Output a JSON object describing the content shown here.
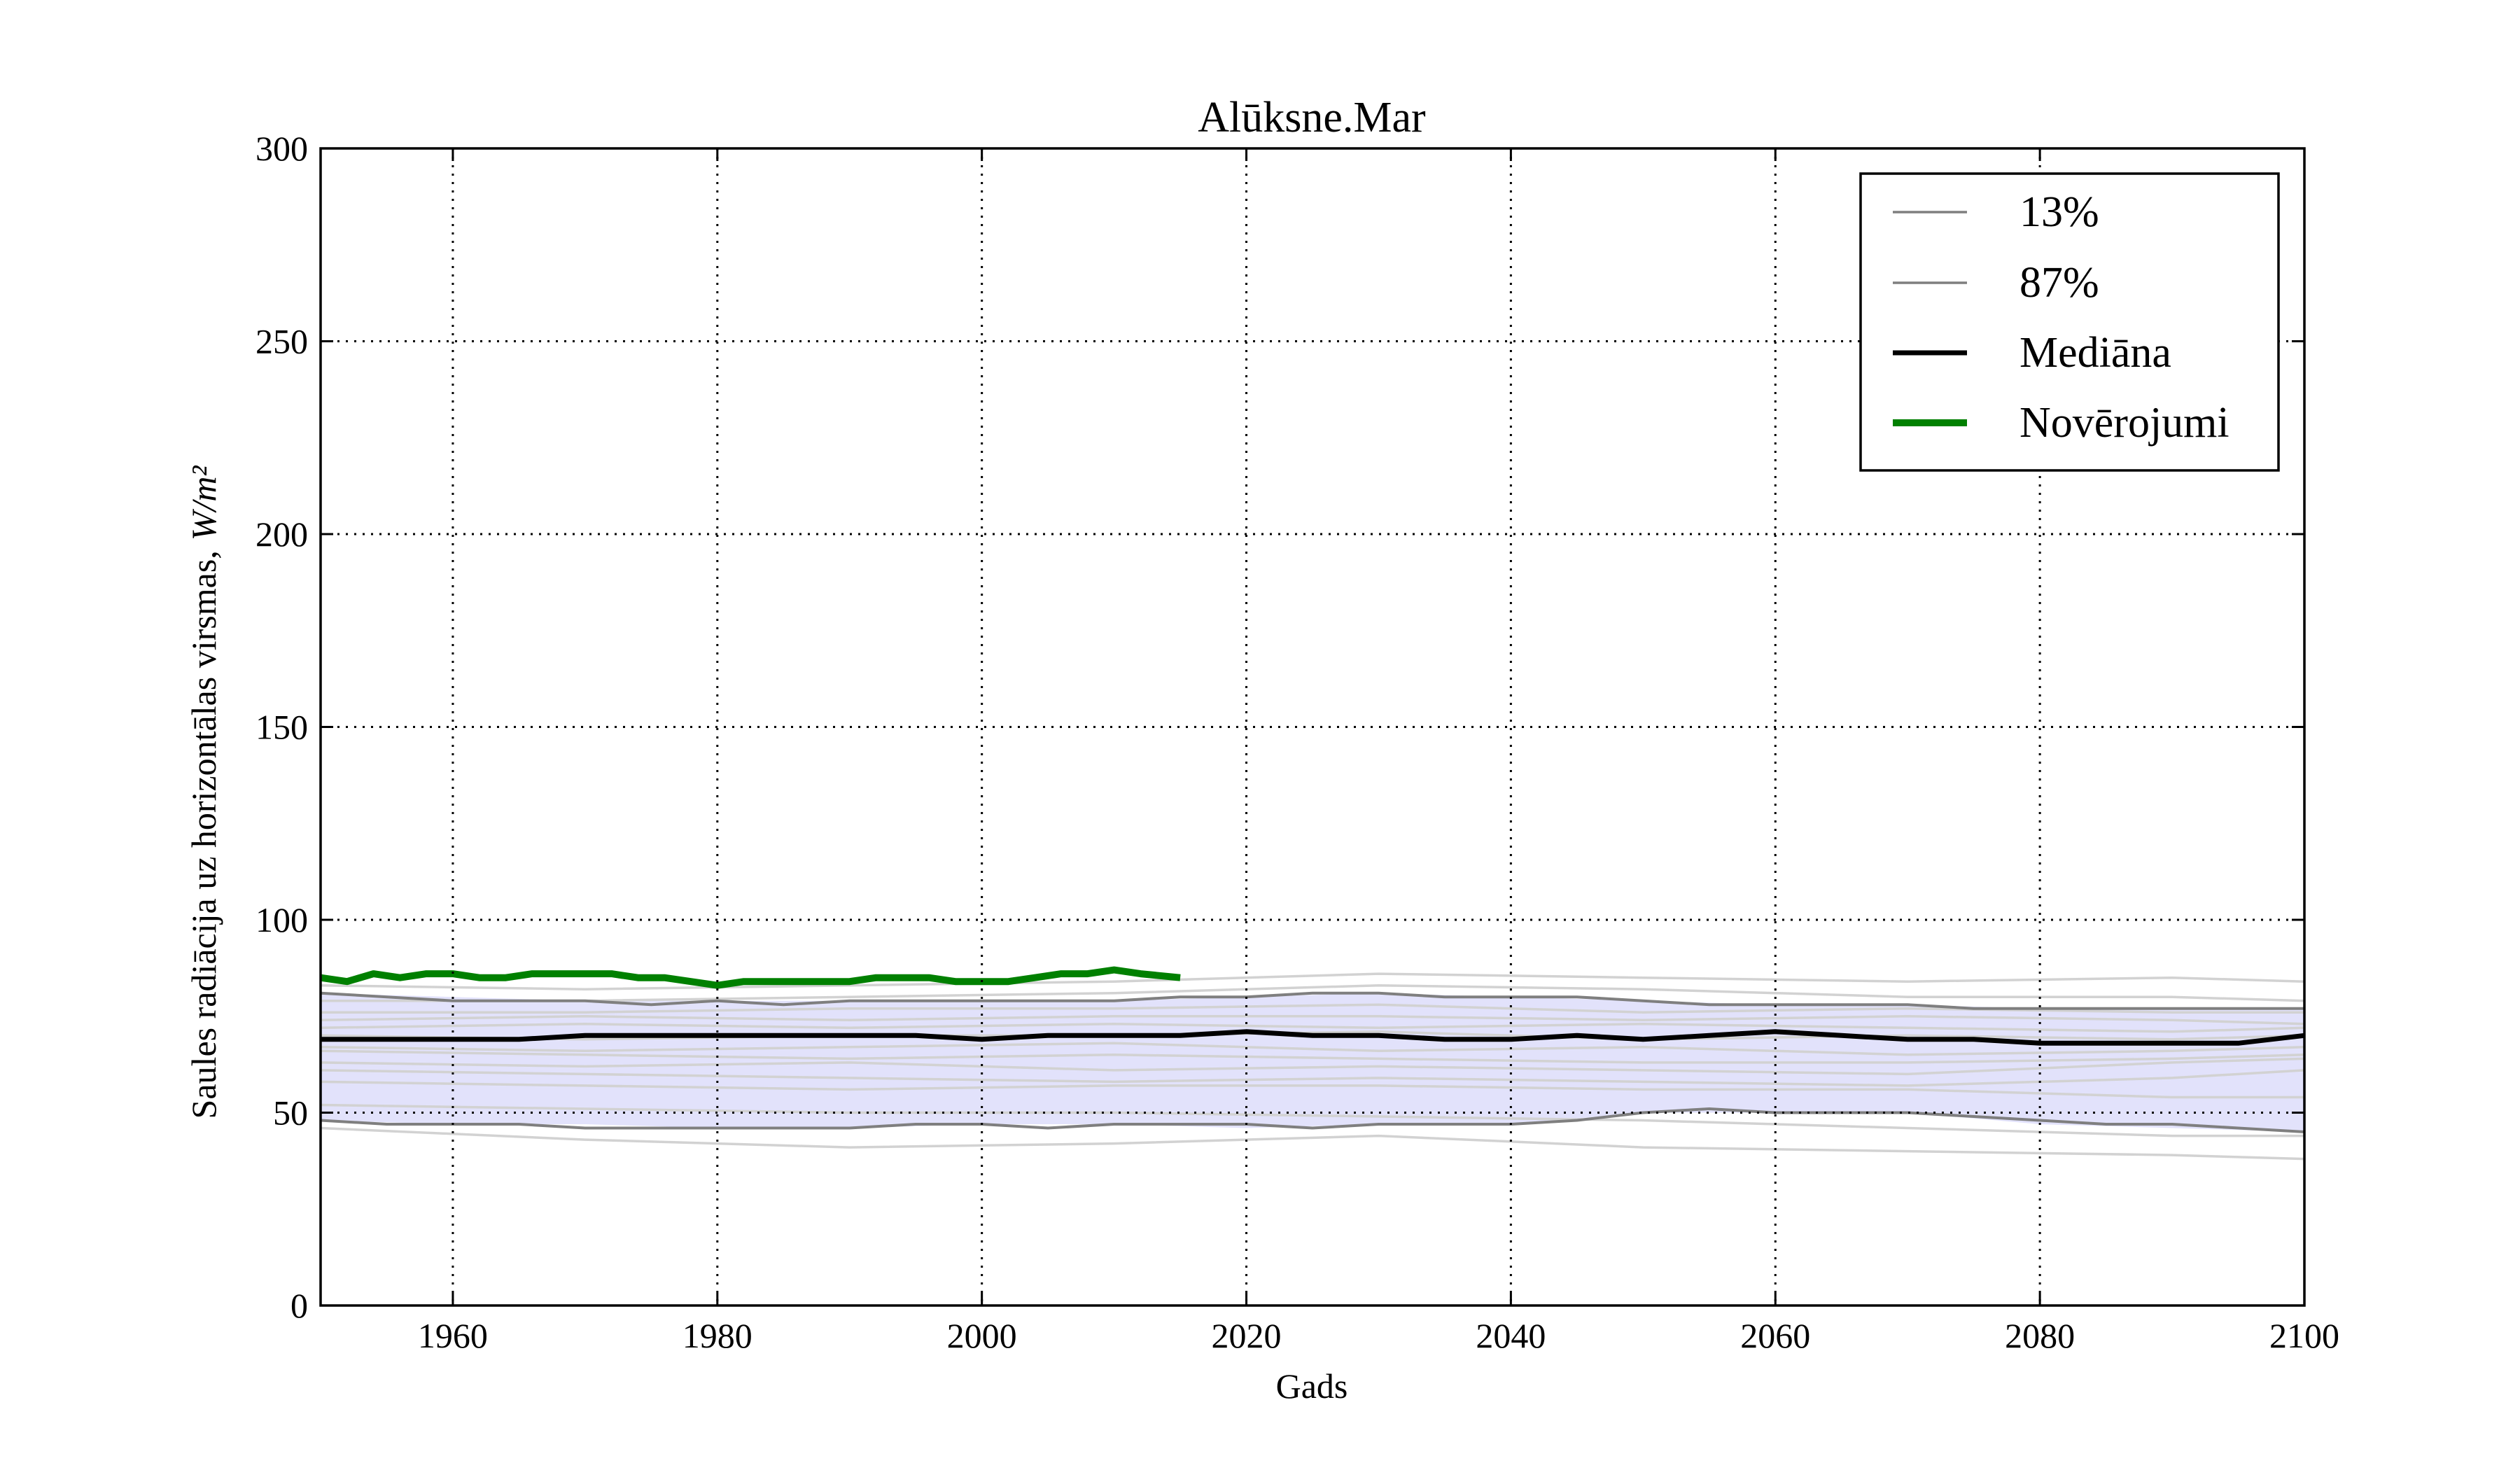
{
  "chart_data": {
    "type": "line",
    "title": "Alūksne.Mar",
    "xlabel": "Gads",
    "ylabel_text": "Saules radiācija uz horizontālas virsmas,",
    "ylabel_unit": "W/m²",
    "xlim": [
      1950,
      2100
    ],
    "ylim": [
      0,
      300
    ],
    "xticks": [
      1960,
      1980,
      2000,
      2020,
      2040,
      2060,
      2080,
      2100
    ],
    "yticks": [
      0,
      50,
      100,
      150,
      200,
      250,
      300
    ],
    "grid": true,
    "legend_position": "top-right",
    "colors": {
      "band": "#e2e2fb",
      "ensemble": "#d2d2d2",
      "percentile": "#7f7f7f",
      "median": "#000000",
      "observations": "#008000"
    },
    "band": {
      "x": [
        1950,
        1960,
        1970,
        1980,
        1990,
        2000,
        2010,
        2020,
        2030,
        2040,
        2050,
        2060,
        2070,
        2080,
        2090,
        2100
      ],
      "lower": [
        48,
        47,
        47,
        46,
        46,
        47,
        47,
        46,
        47,
        47,
        50,
        50,
        50,
        47,
        46,
        45
      ],
      "upper": [
        81,
        80,
        79,
        79,
        79,
        79,
        79,
        80,
        81,
        80,
        79,
        78,
        78,
        77,
        77,
        77
      ]
    },
    "ensemble_members": [
      {
        "x": [
          1950,
          1970,
          1990,
          2010,
          2030,
          2050,
          2070,
          2090,
          2100
        ],
        "values": [
          46,
          43,
          41,
          42,
          44,
          41,
          40,
          39,
          38
        ]
      },
      {
        "x": [
          1950,
          1970,
          1990,
          2010,
          2030,
          2050,
          2070,
          2090,
          2100
        ],
        "values": [
          52,
          51,
          50,
          50,
          49,
          48,
          46,
          44,
          44
        ]
      },
      {
        "x": [
          1950,
          1970,
          1990,
          2010,
          2030,
          2050,
          2070,
          2090,
          2100
        ],
        "values": [
          58,
          57,
          56,
          57,
          57,
          56,
          56,
          54,
          54
        ]
      },
      {
        "x": [
          1950,
          1970,
          1990,
          2010,
          2030,
          2050,
          2070,
          2090,
          2100
        ],
        "values": [
          61,
          60,
          59,
          58,
          59,
          58,
          57,
          59,
          61
        ]
      },
      {
        "x": [
          1950,
          1970,
          1990,
          2010,
          2030,
          2050,
          2070,
          2090,
          2100
        ],
        "values": [
          63,
          62,
          63,
          61,
          62,
          61,
          60,
          63,
          64
        ]
      },
      {
        "x": [
          1950,
          1970,
          1990,
          2010,
          2030,
          2050,
          2070,
          2090,
          2100
        ],
        "values": [
          66,
          65,
          64,
          65,
          64,
          63,
          63,
          64,
          65
        ]
      },
      {
        "x": [
          1950,
          1970,
          1990,
          2010,
          2030,
          2050,
          2070,
          2090,
          2100
        ],
        "values": [
          67,
          66,
          67,
          68,
          66,
          67,
          65,
          66,
          67
        ]
      },
      {
        "x": [
          1950,
          1970,
          1990,
          2010,
          2030,
          2050,
          2070,
          2090,
          2100
        ],
        "values": [
          70,
          69,
          70,
          70,
          71,
          69,
          70,
          69,
          70
        ]
      },
      {
        "x": [
          1950,
          1970,
          1990,
          2010,
          2030,
          2050,
          2070,
          2090,
          2100
        ],
        "values": [
          72,
          73,
          72,
          73,
          72,
          73,
          72,
          71,
          72
        ]
      },
      {
        "x": [
          1950,
          1970,
          1990,
          2010,
          2030,
          2050,
          2070,
          2090,
          2100
        ],
        "values": [
          74,
          75,
          74,
          75,
          75,
          74,
          75,
          74,
          73
        ]
      },
      {
        "x": [
          1950,
          1970,
          1990,
          2010,
          2030,
          2050,
          2070,
          2090,
          2100
        ],
        "values": [
          76,
          76,
          77,
          77,
          78,
          76,
          77,
          76,
          76
        ]
      },
      {
        "x": [
          1950,
          1970,
          1990,
          2010,
          2030,
          2050,
          2070,
          2090,
          2100
        ],
        "values": [
          79,
          79,
          80,
          81,
          83,
          82,
          80,
          80,
          79
        ]
      },
      {
        "x": [
          1950,
          1970,
          1990,
          2010,
          2030,
          2050,
          2070,
          2090,
          2100
        ],
        "values": [
          83,
          82,
          83,
          84,
          86,
          85,
          84,
          85,
          84
        ]
      }
    ],
    "series": [
      {
        "name": "13%",
        "x": [
          1950,
          1955,
          1960,
          1965,
          1970,
          1975,
          1980,
          1985,
          1990,
          1995,
          2000,
          2005,
          2010,
          2015,
          2020,
          2025,
          2030,
          2035,
          2040,
          2045,
          2050,
          2055,
          2060,
          2065,
          2070,
          2075,
          2080,
          2085,
          2090,
          2095,
          2100
        ],
        "values": [
          48,
          47,
          47,
          47,
          46,
          46,
          46,
          46,
          46,
          47,
          47,
          46,
          47,
          47,
          47,
          46,
          47,
          47,
          47,
          48,
          50,
          51,
          50,
          50,
          50,
          49,
          48,
          47,
          47,
          46,
          45
        ]
      },
      {
        "name": "87%",
        "x": [
          1950,
          1955,
          1960,
          1965,
          1970,
          1975,
          1980,
          1985,
          1990,
          1995,
          2000,
          2005,
          2010,
          2015,
          2020,
          2025,
          2030,
          2035,
          2040,
          2045,
          2050,
          2055,
          2060,
          2065,
          2070,
          2075,
          2080,
          2085,
          2090,
          2095,
          2100
        ],
        "values": [
          81,
          80,
          79,
          79,
          79,
          78,
          79,
          78,
          79,
          79,
          79,
          79,
          79,
          80,
          80,
          81,
          81,
          80,
          80,
          80,
          79,
          78,
          78,
          78,
          78,
          77,
          77,
          77,
          77,
          77,
          77
        ]
      },
      {
        "name": "Mediāna",
        "x": [
          1950,
          1955,
          1960,
          1965,
          1970,
          1975,
          1980,
          1985,
          1990,
          1995,
          2000,
          2005,
          2010,
          2015,
          2020,
          2025,
          2030,
          2035,
          2040,
          2045,
          2050,
          2055,
          2060,
          2065,
          2070,
          2075,
          2080,
          2085,
          2090,
          2095,
          2100
        ],
        "values": [
          69,
          69,
          69,
          69,
          70,
          70,
          70,
          70,
          70,
          70,
          69,
          70,
          70,
          70,
          71,
          70,
          70,
          69,
          69,
          70,
          69,
          70,
          71,
          70,
          69,
          69,
          68,
          68,
          68,
          68,
          70
        ]
      },
      {
        "name": "Novērojumi",
        "x": [
          1950,
          1952,
          1954,
          1956,
          1958,
          1960,
          1962,
          1964,
          1966,
          1968,
          1970,
          1972,
          1974,
          1976,
          1978,
          1980,
          1982,
          1984,
          1986,
          1988,
          1990,
          1992,
          1994,
          1996,
          1998,
          2000,
          2002,
          2004,
          2006,
          2008,
          2010,
          2012,
          2015
        ],
        "values": [
          85,
          84,
          86,
          85,
          86,
          86,
          85,
          85,
          86,
          86,
          86,
          86,
          85,
          85,
          84,
          83,
          84,
          84,
          84,
          84,
          84,
          85,
          85,
          85,
          84,
          84,
          84,
          85,
          86,
          86,
          87,
          86,
          85
        ]
      }
    ]
  }
}
